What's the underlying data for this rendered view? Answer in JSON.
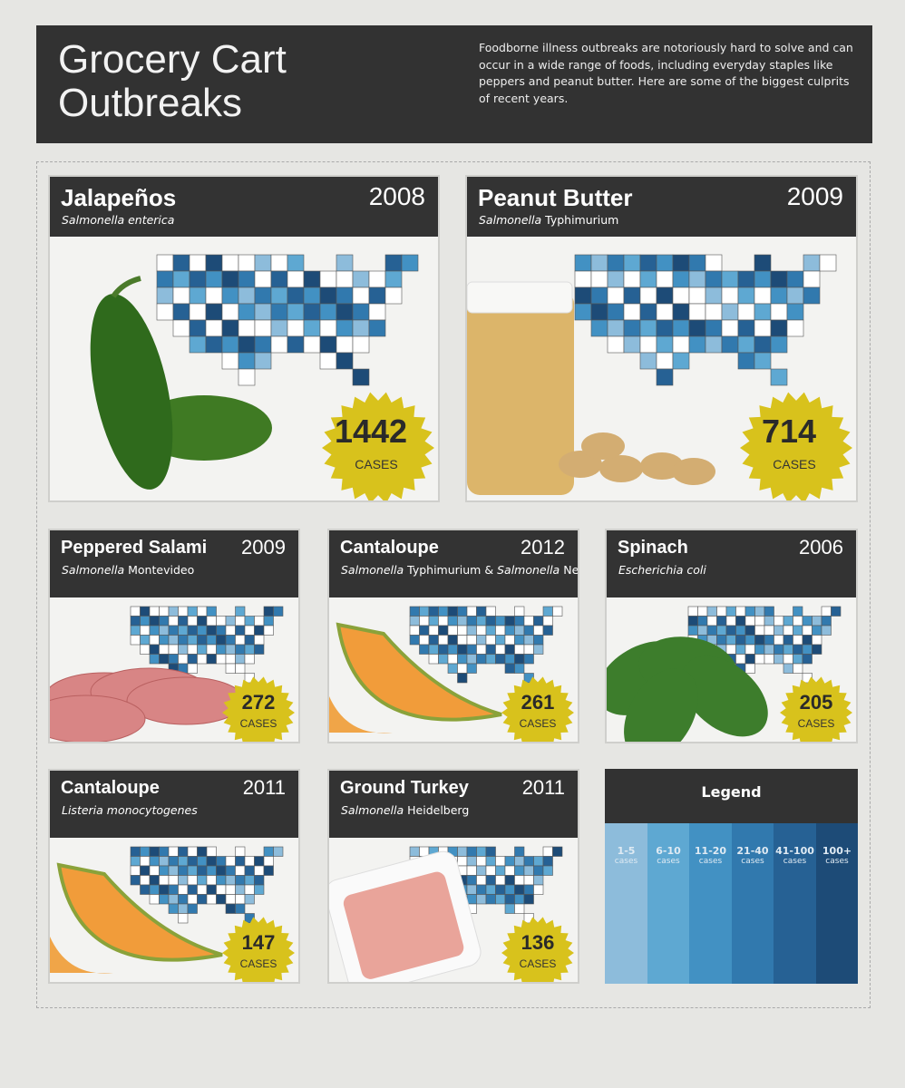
{
  "header": {
    "title": "Grocery Cart Outbreaks",
    "intro": "Foodborne illness outbreaks are notoriously hard to solve and can occur in a wide range of foods, including everyday staples like peppers and peanut butter. Here are some of the biggest culprits of recent years."
  },
  "cards": [
    {
      "food": "Jalapeños",
      "year": 2008,
      "pathogen": [
        {
          "text": "Salmonella enterica",
          "italic": true
        }
      ],
      "cases": 1442,
      "cases_label": "CASES"
    },
    {
      "food": "Peanut Butter",
      "year": 2009,
      "pathogen": [
        {
          "text": "Salmonella",
          "italic": true
        },
        {
          "text": "Typhimurium",
          "italic": false
        }
      ],
      "cases": 714,
      "cases_label": "CASES"
    },
    {
      "food": "Peppered Salami",
      "year": 2009,
      "pathogen": [
        {
          "text": "Salmonella",
          "italic": true
        },
        {
          "text": "Montevideo",
          "italic": false
        }
      ],
      "cases": 272,
      "cases_label": "CASES"
    },
    {
      "food": "Cantaloupe",
      "year": 2012,
      "pathogen": [
        {
          "text": "Salmonella",
          "italic": true
        },
        {
          "text": "Typhimurium",
          "italic": false
        },
        {
          "text": "&",
          "italic": false
        },
        {
          "text": "Salmonella",
          "italic": true
        },
        {
          "text": "Newport",
          "italic": false
        }
      ],
      "cases": 261,
      "cases_label": "CASES"
    },
    {
      "food": "Spinach",
      "year": 2006,
      "pathogen": [
        {
          "text": "Escherichia coli",
          "italic": true
        }
      ],
      "cases": 205,
      "cases_label": "CASES"
    },
    {
      "food": "Cantaloupe",
      "year": 2011,
      "pathogen": [
        {
          "text": "Listeria monocytogenes",
          "italic": true
        }
      ],
      "cases": 147,
      "cases_label": "CASES"
    },
    {
      "food": "Ground Turkey",
      "year": 2011,
      "pathogen": [
        {
          "text": "Salmonella",
          "italic": true
        },
        {
          "text": "Heidelberg",
          "italic": false
        }
      ],
      "cases": 136,
      "cases_label": "CASES"
    }
  ],
  "legend": {
    "title": "Legend",
    "bins": [
      {
        "range": "1-5",
        "unit": "cases",
        "color": "#8dbcdb"
      },
      {
        "range": "6-10",
        "unit": "cases",
        "color": "#5ea8d2"
      },
      {
        "range": "11-20",
        "unit": "cases",
        "color": "#4291c3"
      },
      {
        "range": "21-40",
        "unit": "cases",
        "color": "#3179ae"
      },
      {
        "range": "41-100",
        "unit": "cases",
        "color": "#266194"
      },
      {
        "range": "100+",
        "unit": "cases",
        "color": "#1d4b77"
      }
    ]
  }
}
